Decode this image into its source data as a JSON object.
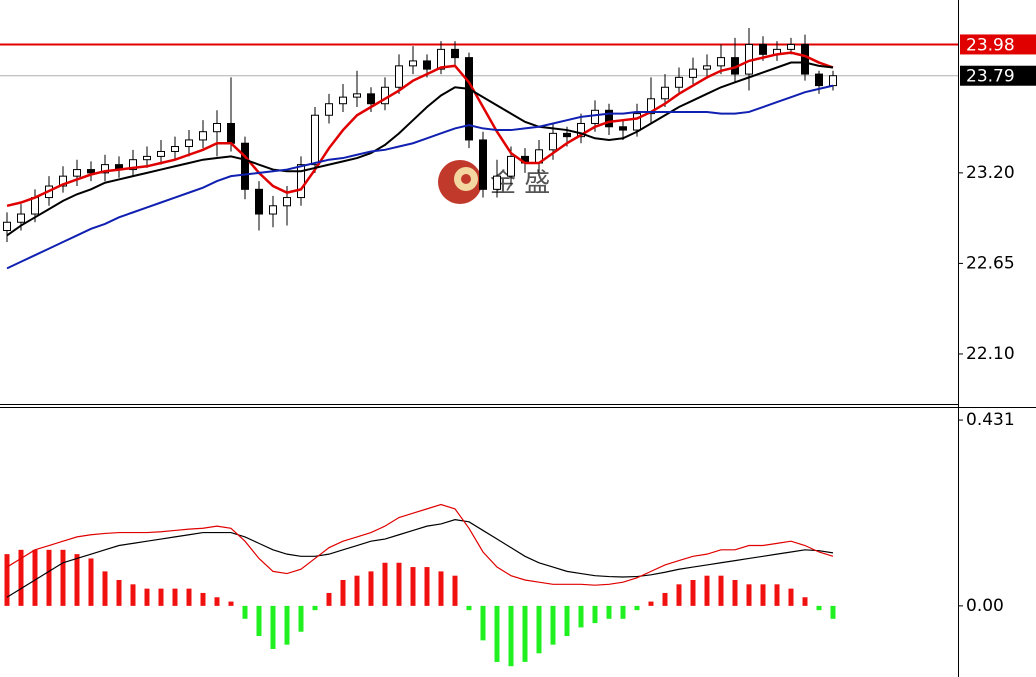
{
  "chart_data": [
    {
      "type": "candlestick",
      "watermark": "金 盛",
      "ylim": [
        21.79,
        24.25
      ],
      "yticks": [
        {
          "value": 23.2,
          "label": "23.20"
        },
        22.65,
        {
          "value": 22.1,
          "label": "22.10"
        }
      ],
      "up_color": "#ffffff",
      "down_color": "#000000",
      "open": [
        22.85,
        22.9,
        22.95,
        23.05,
        23.12,
        23.18,
        23.22,
        23.2,
        23.25,
        23.22,
        23.28,
        23.3,
        23.33,
        23.36,
        23.4,
        23.45,
        23.5,
        23.38,
        23.1,
        22.95,
        23.0,
        23.05,
        23.25,
        23.55,
        23.62,
        23.66,
        23.68,
        23.62,
        23.72,
        23.85,
        23.88,
        23.83,
        23.95,
        23.9,
        23.4,
        23.1,
        23.18,
        23.3,
        23.26,
        23.34,
        23.44,
        23.42,
        23.5,
        23.58,
        23.48,
        23.46,
        23.56,
        23.65,
        23.72,
        23.78,
        23.83,
        23.85,
        23.9,
        23.8,
        23.98,
        23.92,
        23.95,
        23.98,
        23.8,
        23.73
      ],
      "high": [
        22.96,
        23.01,
        23.1,
        23.18,
        23.24,
        23.28,
        23.27,
        23.31,
        23.3,
        23.34,
        23.36,
        23.4,
        23.42,
        23.46,
        23.52,
        23.58,
        23.78,
        23.42,
        23.15,
        23.06,
        23.12,
        23.3,
        23.6,
        23.68,
        23.74,
        23.82,
        23.72,
        23.78,
        23.92,
        23.97,
        23.92,
        24.0,
        24.0,
        23.93,
        23.45,
        23.28,
        23.36,
        23.35,
        23.4,
        23.5,
        23.48,
        23.56,
        23.64,
        23.62,
        23.52,
        23.62,
        23.78,
        23.8,
        23.84,
        23.9,
        23.92,
        23.98,
        24.02,
        24.08,
        24.03,
        24.0,
        24.02,
        24.04,
        23.82,
        23.82
      ],
      "low": [
        22.78,
        22.85,
        22.9,
        23.0,
        23.08,
        23.12,
        23.15,
        23.15,
        23.17,
        23.18,
        23.23,
        23.25,
        23.28,
        23.3,
        23.35,
        23.3,
        23.33,
        23.04,
        22.85,
        22.87,
        22.88,
        23.0,
        23.2,
        23.5,
        23.57,
        23.6,
        23.57,
        23.58,
        23.68,
        23.8,
        23.78,
        23.8,
        23.85,
        23.35,
        23.05,
        23.05,
        23.12,
        23.2,
        23.2,
        23.28,
        23.36,
        23.38,
        23.45,
        23.43,
        23.4,
        23.42,
        23.5,
        23.6,
        23.68,
        23.74,
        23.78,
        23.8,
        23.75,
        23.7,
        23.88,
        23.88,
        23.92,
        23.76,
        23.68,
        23.7
      ],
      "close": [
        22.9,
        22.95,
        23.05,
        23.12,
        23.18,
        23.22,
        23.2,
        23.25,
        23.22,
        23.28,
        23.3,
        23.33,
        23.36,
        23.4,
        23.45,
        23.5,
        23.38,
        23.1,
        22.95,
        23.0,
        23.05,
        23.25,
        23.55,
        23.62,
        23.66,
        23.68,
        23.62,
        23.72,
        23.85,
        23.88,
        23.83,
        23.95,
        23.9,
        23.4,
        23.1,
        23.18,
        23.3,
        23.26,
        23.34,
        23.44,
        23.42,
        23.5,
        23.58,
        23.48,
        23.46,
        23.56,
        23.65,
        23.72,
        23.78,
        23.83,
        23.85,
        23.9,
        23.8,
        23.98,
        23.92,
        23.95,
        23.98,
        23.8,
        23.73,
        23.79
      ],
      "lines": [
        {
          "color": "#e00000",
          "values": [
            23.0,
            23.02,
            23.05,
            23.09,
            23.13,
            23.16,
            23.19,
            23.21,
            23.22,
            23.23,
            23.24,
            23.26,
            23.28,
            23.31,
            23.34,
            23.38,
            23.38,
            23.3,
            23.2,
            23.12,
            23.08,
            23.1,
            23.22,
            23.35,
            23.46,
            23.55,
            23.6,
            23.65,
            23.7,
            23.76,
            23.8,
            23.84,
            23.85,
            23.75,
            23.6,
            23.45,
            23.32,
            23.26,
            23.26,
            23.32,
            23.38,
            23.43,
            23.48,
            23.51,
            23.52,
            23.53,
            23.57,
            23.62,
            23.68,
            23.73,
            23.78,
            23.82,
            23.84,
            23.88,
            23.9,
            23.92,
            23.93,
            23.91,
            23.87,
            23.84
          ]
        },
        {
          "color": "#000000",
          "values": [
            22.82,
            22.88,
            22.93,
            22.98,
            23.03,
            23.07,
            23.1,
            23.14,
            23.16,
            23.18,
            23.2,
            23.22,
            23.24,
            23.26,
            23.28,
            23.29,
            23.3,
            23.28,
            23.25,
            23.22,
            23.21,
            23.21,
            23.23,
            23.25,
            23.27,
            23.29,
            23.32,
            23.37,
            23.44,
            23.52,
            23.6,
            23.67,
            23.72,
            23.71,
            23.66,
            23.61,
            23.56,
            23.51,
            23.48,
            23.47,
            23.46,
            23.44,
            23.41,
            23.4,
            23.41,
            23.45,
            23.5,
            23.55,
            23.6,
            23.64,
            23.68,
            23.72,
            23.75,
            23.78,
            23.81,
            23.84,
            23.87,
            23.87,
            23.85,
            23.84
          ]
        },
        {
          "color": "#1020b0",
          "values": [
            22.62,
            22.66,
            22.7,
            22.74,
            22.78,
            22.82,
            22.86,
            22.89,
            22.93,
            22.96,
            22.99,
            23.02,
            23.05,
            23.08,
            23.11,
            23.15,
            23.18,
            23.19,
            23.2,
            23.21,
            23.22,
            23.24,
            23.26,
            23.28,
            23.29,
            23.31,
            23.33,
            23.34,
            23.36,
            23.38,
            23.41,
            23.44,
            23.47,
            23.49,
            23.47,
            23.46,
            23.46,
            23.47,
            23.48,
            23.5,
            23.52,
            23.54,
            23.55,
            23.56,
            23.56,
            23.57,
            23.57,
            23.57,
            23.57,
            23.57,
            23.57,
            23.56,
            23.56,
            23.57,
            23.6,
            23.63,
            23.66,
            23.69,
            23.71,
            23.73
          ]
        }
      ],
      "hlines": [
        {
          "value": 23.98,
          "color": "#e00000",
          "label_bg": "#e00000"
        },
        {
          "value": 23.79,
          "color": "#b0b0b0",
          "label_bg": "#000000"
        }
      ]
    },
    {
      "type": "macd",
      "ylim": [
        -0.165,
        0.459
      ],
      "yticks": [
        0.431,
        {
          "value": 0,
          "label": "0.00"
        }
      ],
      "positive_color": "#f01010",
      "negative_color": "#20f020",
      "values": [
        0.12,
        0.13,
        0.13,
        0.13,
        0.13,
        0.12,
        0.11,
        0.08,
        0.06,
        0.05,
        0.04,
        0.04,
        0.04,
        0.04,
        0.03,
        0.02,
        0.01,
        -0.03,
        -0.07,
        -0.1,
        -0.09,
        -0.06,
        -0.01,
        0.03,
        0.06,
        0.07,
        0.08,
        0.1,
        0.1,
        0.09,
        0.09,
        0.08,
        0.07,
        -0.01,
        -0.08,
        -0.13,
        -0.14,
        -0.13,
        -0.11,
        -0.09,
        -0.07,
        -0.05,
        -0.04,
        -0.03,
        -0.03,
        -0.01,
        0.01,
        0.03,
        0.05,
        0.06,
        0.07,
        0.07,
        0.06,
        0.05,
        0.05,
        0.05,
        0.04,
        0.02,
        -0.01,
        -0.03
      ],
      "lines": [
        {
          "color": "#000000",
          "values": [
            0.02,
            0.04,
            0.06,
            0.08,
            0.1,
            0.11,
            0.12,
            0.13,
            0.14,
            0.145,
            0.15,
            0.155,
            0.16,
            0.165,
            0.17,
            0.17,
            0.17,
            0.16,
            0.145,
            0.13,
            0.12,
            0.115,
            0.115,
            0.12,
            0.13,
            0.14,
            0.15,
            0.155,
            0.165,
            0.175,
            0.185,
            0.19,
            0.2,
            0.195,
            0.175,
            0.155,
            0.135,
            0.115,
            0.1,
            0.09,
            0.08,
            0.075,
            0.07,
            0.068,
            0.067,
            0.068,
            0.072,
            0.078,
            0.085,
            0.09,
            0.095,
            0.1,
            0.105,
            0.11,
            0.115,
            0.12,
            0.125,
            0.13,
            0.128,
            0.123
          ]
        },
        {
          "color": "#e00000",
          "values": [
            0.09,
            0.11,
            0.13,
            0.14,
            0.15,
            0.16,
            0.165,
            0.168,
            0.17,
            0.17,
            0.17,
            0.172,
            0.175,
            0.178,
            0.18,
            0.185,
            0.18,
            0.15,
            0.11,
            0.08,
            0.075,
            0.085,
            0.11,
            0.135,
            0.15,
            0.16,
            0.17,
            0.185,
            0.205,
            0.215,
            0.225,
            0.235,
            0.225,
            0.18,
            0.125,
            0.09,
            0.07,
            0.06,
            0.055,
            0.05,
            0.05,
            0.05,
            0.048,
            0.05,
            0.055,
            0.065,
            0.08,
            0.095,
            0.105,
            0.115,
            0.12,
            0.13,
            0.13,
            0.14,
            0.14,
            0.145,
            0.15,
            0.14,
            0.125,
            0.115
          ]
        }
      ]
    }
  ]
}
